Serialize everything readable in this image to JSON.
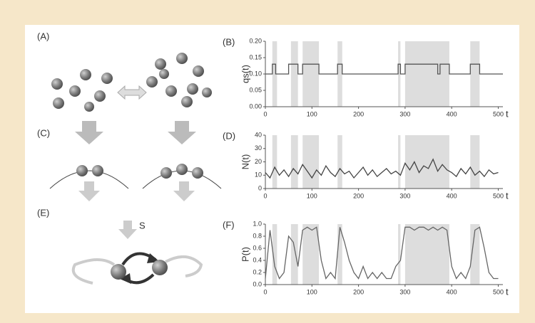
{
  "chart_data": [
    {
      "type": "line",
      "title": "(B)",
      "ylabel": "qs(t)",
      "xlabel": "t",
      "color": "#555555",
      "x": [
        0,
        15,
        15,
        22,
        22,
        50,
        50,
        70,
        70,
        80,
        80,
        115,
        115,
        155,
        155,
        165,
        165,
        285,
        285,
        290,
        290,
        300,
        300,
        370,
        370,
        375,
        375,
        395,
        395,
        440,
        440,
        460,
        460,
        510
      ],
      "values": [
        0.1,
        0.1,
        0.13,
        0.13,
        0.1,
        0.1,
        0.13,
        0.13,
        0.1,
        0.1,
        0.13,
        0.13,
        0.1,
        0.1,
        0.13,
        0.13,
        0.1,
        0.1,
        0.13,
        0.13,
        0.1,
        0.1,
        0.13,
        0.13,
        0.1,
        0.1,
        0.13,
        0.13,
        0.1,
        0.1,
        0.13,
        0.13,
        0.1,
        0.1
      ],
      "xlim": [
        0,
        510
      ],
      "ylim": [
        0,
        0.2
      ],
      "xticks": [
        0,
        100,
        200,
        300,
        400,
        500
      ],
      "yticks": [
        {
          "value": 0,
          "label": "0.00"
        },
        {
          "value": 0.05,
          "label": "0.05"
        },
        {
          "value": 0.1,
          "label": "0.10"
        },
        {
          "value": 0.15,
          "label": "0.15"
        },
        {
          "value": 0.2,
          "label": "0.20"
        }
      ],
      "highlight_regions": [
        [
          15,
          25
        ],
        [
          55,
          70
        ],
        [
          80,
          115
        ],
        [
          155,
          165
        ],
        [
          285,
          290
        ],
        [
          300,
          395
        ],
        [
          440,
          460
        ]
      ],
      "highlight_color": "#dddddd"
    },
    {
      "type": "line",
      "title": "(D)",
      "ylabel": "N(t)",
      "xlabel": "t",
      "color": "#444444",
      "x": [
        0,
        10,
        20,
        30,
        40,
        50,
        60,
        70,
        80,
        90,
        100,
        110,
        120,
        130,
        140,
        150,
        160,
        170,
        180,
        190,
        200,
        210,
        220,
        230,
        240,
        250,
        260,
        270,
        280,
        290,
        300,
        310,
        320,
        330,
        340,
        350,
        360,
        370,
        380,
        390,
        400,
        410,
        420,
        430,
        440,
        450,
        460,
        470,
        480,
        490,
        500
      ],
      "values": [
        12,
        8,
        16,
        10,
        14,
        9,
        15,
        11,
        18,
        13,
        8,
        14,
        10,
        17,
        12,
        9,
        15,
        11,
        13,
        8,
        12,
        16,
        10,
        14,
        9,
        12,
        15,
        11,
        13,
        10,
        19,
        14,
        20,
        12,
        17,
        15,
        22,
        13,
        18,
        14,
        12,
        9,
        15,
        11,
        16,
        10,
        13,
        9,
        14,
        11,
        12
      ],
      "xlim": [
        0,
        510
      ],
      "ylim": [
        0,
        40
      ],
      "xticks": [
        0,
        100,
        200,
        300,
        400,
        500
      ],
      "yticks": [
        0,
        10,
        20,
        30,
        40
      ],
      "highlight_regions": [
        [
          15,
          25
        ],
        [
          55,
          70
        ],
        [
          80,
          115
        ],
        [
          155,
          165
        ],
        [
          285,
          290
        ],
        [
          300,
          395
        ],
        [
          440,
          460
        ]
      ],
      "highlight_color": "#dddddd"
    },
    {
      "type": "line",
      "title": "(F)",
      "ylabel": "P(t)",
      "xlabel": "t",
      "color": "#666666",
      "x": [
        0,
        10,
        20,
        30,
        40,
        50,
        60,
        70,
        80,
        90,
        100,
        110,
        120,
        130,
        140,
        150,
        160,
        170,
        180,
        190,
        200,
        210,
        220,
        230,
        240,
        250,
        260,
        270,
        280,
        290,
        300,
        310,
        320,
        330,
        340,
        350,
        360,
        370,
        380,
        390,
        400,
        410,
        420,
        430,
        440,
        450,
        460,
        470,
        480,
        490,
        500
      ],
      "values": [
        0.1,
        0.9,
        0.3,
        0.1,
        0.2,
        0.8,
        0.7,
        0.3,
        0.9,
        0.95,
        0.9,
        0.95,
        0.4,
        0.1,
        0.2,
        0.1,
        0.95,
        0.7,
        0.4,
        0.2,
        0.1,
        0.3,
        0.1,
        0.2,
        0.1,
        0.2,
        0.1,
        0.1,
        0.3,
        0.4,
        0.95,
        0.95,
        0.9,
        0.95,
        0.95,
        0.9,
        0.95,
        0.9,
        0.95,
        0.9,
        0.3,
        0.1,
        0.2,
        0.1,
        0.3,
        0.9,
        0.95,
        0.6,
        0.2,
        0.1,
        0.1
      ],
      "xlim": [
        0,
        510
      ],
      "ylim": [
        0,
        1
      ],
      "xticks": [
        0,
        100,
        200,
        300,
        400,
        500
      ],
      "yticks": [
        {
          "value": 0,
          "label": "0.0"
        },
        {
          "value": 0.2,
          "label": "0.2"
        },
        {
          "value": 0.4,
          "label": "0.4"
        },
        {
          "value": 0.6,
          "label": "0.6"
        },
        {
          "value": 0.8,
          "label": "0.8"
        },
        {
          "value": 1,
          "label": "1.0"
        }
      ],
      "highlight_regions": [
        [
          15,
          25
        ],
        [
          55,
          70
        ],
        [
          80,
          115
        ],
        [
          155,
          165
        ],
        [
          285,
          290
        ],
        [
          300,
          395
        ],
        [
          440,
          460
        ]
      ],
      "highlight_color": "#dddddd"
    }
  ],
  "diagram": {
    "panel_a": "(A)",
    "panel_c": "(C)",
    "panel_e": "(E)",
    "signal": "S"
  }
}
